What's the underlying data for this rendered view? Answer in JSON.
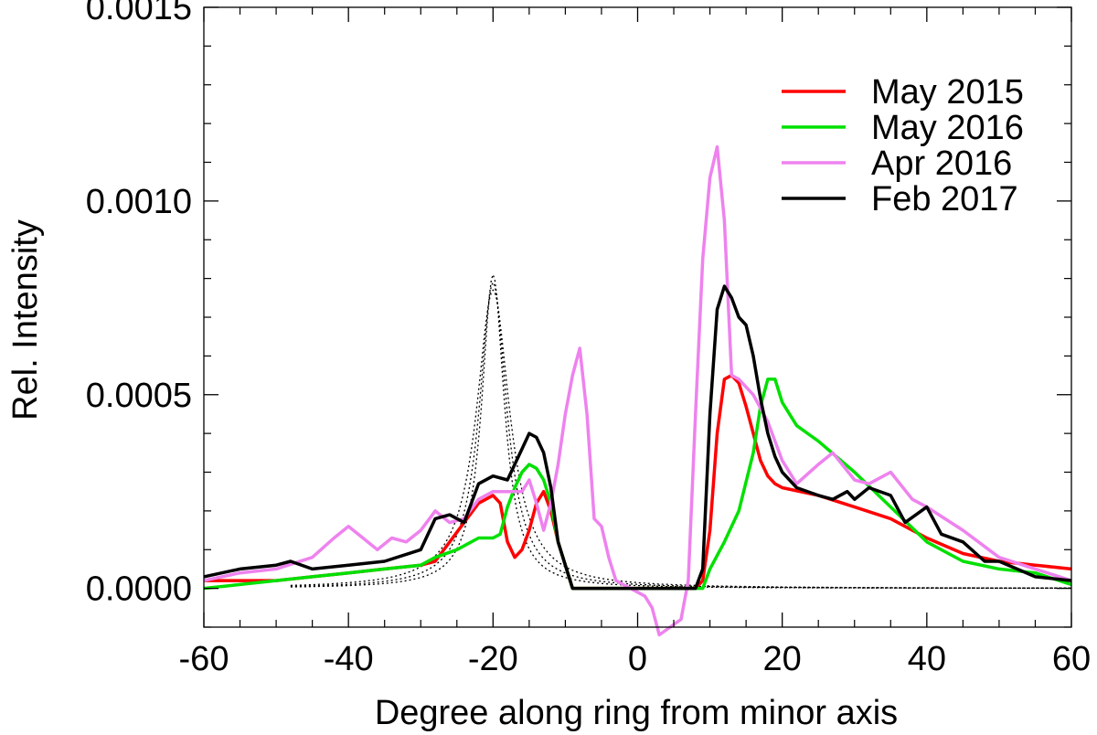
{
  "chart_data": {
    "type": "line",
    "title": "",
    "xlabel": "Degree along ring from minor axis",
    "ylabel": "Rel. Intensity",
    "xlim": [
      -60,
      60
    ],
    "ylim": [
      -0.0001,
      0.0015
    ],
    "xticks": [
      -60,
      -40,
      -20,
      0,
      20,
      40,
      60
    ],
    "xtick_labels": [
      "-60",
      "-40",
      "-20",
      "0",
      "20",
      "40",
      "60"
    ],
    "yticks": [
      0.0,
      0.0005,
      0.001,
      0.0015
    ],
    "ytick_labels": [
      "0.0000",
      "0.0005",
      "0.0010",
      "0.0015"
    ],
    "grid": false,
    "legend_position": "top-right",
    "series": [
      {
        "name": "May 2015",
        "color": "#ff0000",
        "points": [
          [
            -60,
            2e-05
          ],
          [
            -55,
            2e-05
          ],
          [
            -50,
            2e-05
          ],
          [
            -45,
            3e-05
          ],
          [
            -40,
            4e-05
          ],
          [
            -35,
            5e-05
          ],
          [
            -30,
            6e-05
          ],
          [
            -28,
            7e-05
          ],
          [
            -26,
            0.00012
          ],
          [
            -24,
            0.00017
          ],
          [
            -22,
            0.00022
          ],
          [
            -20,
            0.00024
          ],
          [
            -19,
            0.00022
          ],
          [
            -18,
            0.00012
          ],
          [
            -17,
            8e-05
          ],
          [
            -16,
            0.0001
          ],
          [
            -15,
            0.00015
          ],
          [
            -14,
            0.00022
          ],
          [
            -13,
            0.00025
          ],
          [
            -12,
            0.0002
          ],
          [
            -11,
            0.00012
          ],
          [
            -9,
            0.0
          ],
          [
            8,
            0.0
          ],
          [
            9,
            2e-05
          ],
          [
            10,
            0.00015
          ],
          [
            11,
            0.0004
          ],
          [
            12,
            0.00054
          ],
          [
            13,
            0.00055
          ],
          [
            14,
            0.00053
          ],
          [
            15,
            0.00047
          ],
          [
            16,
            0.0004
          ],
          [
            17,
            0.00033
          ],
          [
            18,
            0.00029
          ],
          [
            19,
            0.00027
          ],
          [
            20,
            0.00026
          ],
          [
            25,
            0.00024
          ],
          [
            30,
            0.00021
          ],
          [
            35,
            0.00018
          ],
          [
            40,
            0.00013
          ],
          [
            45,
            9e-05
          ],
          [
            50,
            7e-05
          ],
          [
            55,
            6e-05
          ],
          [
            60,
            5e-05
          ]
        ]
      },
      {
        "name": "May 2016",
        "color": "#00e000",
        "points": [
          [
            -60,
            0.0
          ],
          [
            -55,
            1e-05
          ],
          [
            -50,
            2e-05
          ],
          [
            -45,
            3e-05
          ],
          [
            -40,
            4e-05
          ],
          [
            -35,
            5e-05
          ],
          [
            -30,
            6e-05
          ],
          [
            -28,
            8e-05
          ],
          [
            -25,
            0.0001
          ],
          [
            -22,
            0.00013
          ],
          [
            -20,
            0.00013
          ],
          [
            -19,
            0.00014
          ],
          [
            -18,
            0.00021
          ],
          [
            -17,
            0.00026
          ],
          [
            -16,
            0.0003
          ],
          [
            -15,
            0.00032
          ],
          [
            -14,
            0.00031
          ],
          [
            -13,
            0.00028
          ],
          [
            -12,
            0.00022
          ],
          [
            -11,
            0.00012
          ],
          [
            -9,
            0.0
          ],
          [
            9,
            0.0
          ],
          [
            10,
            5e-05
          ],
          [
            12,
            0.00012
          ],
          [
            14,
            0.0002
          ],
          [
            16,
            0.00035
          ],
          [
            17,
            0.00047
          ],
          [
            18,
            0.00054
          ],
          [
            19,
            0.00054
          ],
          [
            20,
            0.00048
          ],
          [
            22,
            0.00042
          ],
          [
            25,
            0.00038
          ],
          [
            30,
            0.0003
          ],
          [
            35,
            0.00021
          ],
          [
            40,
            0.00012
          ],
          [
            45,
            7e-05
          ],
          [
            50,
            5e-05
          ],
          [
            55,
            4e-05
          ],
          [
            60,
            1e-05
          ]
        ]
      },
      {
        "name": "Apr 2016",
        "color": "#ee82ee",
        "points": [
          [
            -60,
            2e-05
          ],
          [
            -55,
            4e-05
          ],
          [
            -50,
            5e-05
          ],
          [
            -45,
            8e-05
          ],
          [
            -42,
            0.00013
          ],
          [
            -40,
            0.00016
          ],
          [
            -38,
            0.00013
          ],
          [
            -36,
            0.0001
          ],
          [
            -34,
            0.00013
          ],
          [
            -32,
            0.00012
          ],
          [
            -30,
            0.00015
          ],
          [
            -28,
            0.0002
          ],
          [
            -26,
            0.00017
          ],
          [
            -24,
            0.00018
          ],
          [
            -22,
            0.00023
          ],
          [
            -20,
            0.00025
          ],
          [
            -18,
            0.00025
          ],
          [
            -16,
            0.00025
          ],
          [
            -15,
            0.00028
          ],
          [
            -14,
            0.00022
          ],
          [
            -13,
            0.00015
          ],
          [
            -12,
            0.00022
          ],
          [
            -11,
            0.00032
          ],
          [
            -10,
            0.00045
          ],
          [
            -9,
            0.00055
          ],
          [
            -8,
            0.00062
          ],
          [
            -7,
            0.00045
          ],
          [
            -6,
            0.00018
          ],
          [
            -5,
            0.00016
          ],
          [
            -4,
            8e-05
          ],
          [
            -3,
            2e-05
          ],
          [
            -1,
            0.0
          ],
          [
            1,
            -2e-05
          ],
          [
            2,
            -5e-05
          ],
          [
            3,
            -0.00012
          ],
          [
            6,
            -8e-05
          ],
          [
            7,
            2e-05
          ],
          [
            8,
            0.00045
          ],
          [
            9,
            0.00085
          ],
          [
            10,
            0.00106
          ],
          [
            11,
            0.00114
          ],
          [
            12,
            0.00095
          ],
          [
            13,
            0.00055
          ],
          [
            14,
            0.00054
          ],
          [
            16,
            0.0005
          ],
          [
            18,
            0.00043
          ],
          [
            20,
            0.00033
          ],
          [
            22,
            0.00027
          ],
          [
            25,
            0.00032
          ],
          [
            27,
            0.00035
          ],
          [
            30,
            0.00028
          ],
          [
            32,
            0.00027
          ],
          [
            35,
            0.0003
          ],
          [
            38,
            0.00023
          ],
          [
            40,
            0.00021
          ],
          [
            45,
            0.00015
          ],
          [
            50,
            8e-05
          ],
          [
            55,
            5e-05
          ],
          [
            60,
            2e-05
          ]
        ]
      },
      {
        "name": "Feb 2017",
        "color": "#000000",
        "points": [
          [
            -60,
            3e-05
          ],
          [
            -55,
            5e-05
          ],
          [
            -50,
            6e-05
          ],
          [
            -48,
            7e-05
          ],
          [
            -45,
            5e-05
          ],
          [
            -40,
            6e-05
          ],
          [
            -35,
            7e-05
          ],
          [
            -30,
            0.0001
          ],
          [
            -28,
            0.00018
          ],
          [
            -26,
            0.00019
          ],
          [
            -24,
            0.00017
          ],
          [
            -22,
            0.00027
          ],
          [
            -20,
            0.00029
          ],
          [
            -18,
            0.00028
          ],
          [
            -16,
            0.00036
          ],
          [
            -15,
            0.0004
          ],
          [
            -14,
            0.00039
          ],
          [
            -13,
            0.00035
          ],
          [
            -12,
            0.00026
          ],
          [
            -11,
            0.00012
          ],
          [
            -9,
            0.0
          ],
          [
            8,
            0.0
          ],
          [
            9,
            5e-05
          ],
          [
            10,
            0.00045
          ],
          [
            11,
            0.00072
          ],
          [
            12,
            0.00078
          ],
          [
            13,
            0.00075
          ],
          [
            14,
            0.0007
          ],
          [
            15,
            0.00068
          ],
          [
            16,
            0.0006
          ],
          [
            17,
            0.00049
          ],
          [
            18,
            0.0004
          ],
          [
            19,
            0.00034
          ],
          [
            20,
            0.0003
          ],
          [
            22,
            0.00026
          ],
          [
            25,
            0.00024
          ],
          [
            27,
            0.00023
          ],
          [
            29,
            0.00025
          ],
          [
            30,
            0.00023
          ],
          [
            32,
            0.00026
          ],
          [
            35,
            0.00024
          ],
          [
            37,
            0.00017
          ],
          [
            40,
            0.00021
          ],
          [
            42,
            0.00014
          ],
          [
            45,
            0.00012
          ],
          [
            48,
            7e-05
          ],
          [
            50,
            7e-05
          ],
          [
            55,
            3e-05
          ],
          [
            60,
            2e-05
          ]
        ]
      }
    ],
    "reference_curves": [
      {
        "color": "#000000",
        "style": "dotted",
        "center": -20,
        "peak": 0.00081,
        "width": 1.9,
        "tail": 0.0
      },
      {
        "color": "#000000",
        "style": "dotted",
        "center": -20,
        "peak": 0.00079,
        "width": 2.3,
        "tail": 0.0
      },
      {
        "color": "#000000",
        "style": "dotted",
        "center": -20,
        "peak": 0.00077,
        "width": 2.8,
        "tail": 0.0
      }
    ]
  }
}
